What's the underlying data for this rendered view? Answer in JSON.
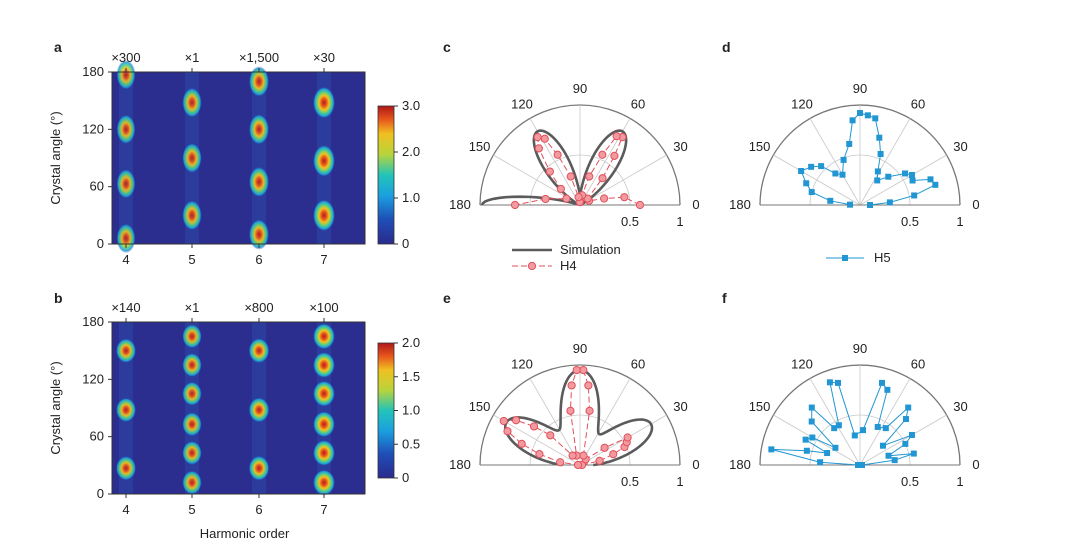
{
  "chart_data": [
    {
      "panel": "a",
      "type": "heatmap",
      "xlabel": "",
      "ylabel": "Crystal angle (°)",
      "x_ticks": [
        "4",
        "5",
        "6",
        "7"
      ],
      "y_ticks": [
        "0",
        "60",
        "120",
        "180"
      ],
      "ylim": [
        0,
        180
      ],
      "top_labels": [
        "×300",
        "×1",
        "×1,500",
        "×30"
      ],
      "colorbar": {
        "ticks": [
          "0",
          "1.0",
          "2.0",
          "3.0"
        ],
        "range": [
          0,
          3
        ]
      },
      "spots": [
        {
          "h": 4,
          "angles": [
            6,
            63,
            120,
            177
          ],
          "level": 0.75
        },
        {
          "h": 5,
          "angles": [
            30,
            90,
            148
          ],
          "level": 0.8
        },
        {
          "h": 6,
          "angles": [
            10,
            65,
            120,
            170
          ],
          "level": 0.85
        },
        {
          "h": 7,
          "angles": [
            30,
            87,
            148
          ],
          "level": 1.0
        }
      ]
    },
    {
      "panel": "b",
      "type": "heatmap",
      "xlabel": "Harmonic order",
      "ylabel": "Crystal angle (°)",
      "x_ticks": [
        "4",
        "5",
        "6",
        "7"
      ],
      "y_ticks": [
        "0",
        "60",
        "120",
        "180"
      ],
      "ylim": [
        0,
        180
      ],
      "top_labels": [
        "×140",
        "×1",
        "×800",
        "×100"
      ],
      "colorbar": {
        "ticks": [
          "0",
          "0.5",
          "1.0",
          "1.5",
          "2.0"
        ],
        "range": [
          0,
          2
        ]
      },
      "spots": [
        {
          "h": 4,
          "angles": [
            27,
            88,
            150
          ],
          "level": 0.85
        },
        {
          "h": 5,
          "angles": [
            12,
            43,
            73,
            105,
            135,
            165
          ],
          "level": 0.8
        },
        {
          "h": 6,
          "angles": [
            27,
            88,
            150
          ],
          "level": 0.9
        },
        {
          "h": 7,
          "angles": [
            12,
            43,
            73,
            105,
            135,
            165
          ],
          "level": 1.0
        }
      ]
    },
    {
      "panel": "c",
      "type": "scatter",
      "polar": true,
      "angle_ticks": [
        "180",
        "150",
        "120",
        "90",
        "60",
        "30",
        "0"
      ],
      "radial_ticks": [
        "0.5",
        "1"
      ],
      "legend": [
        "Simulation",
        "H4"
      ],
      "simulation_lobes": [
        {
          "angle": 60,
          "amp": 0.85,
          "width": 2.2
        },
        {
          "angle": 120,
          "amp": 0.85,
          "width": 2.2
        },
        {
          "angle": 180,
          "amp": 0.98,
          "width": 4
        }
      ],
      "series": [
        {
          "name": "H4",
          "points": [
            [
              0,
              0.6
            ],
            [
              10,
              0.45
            ],
            [
              15,
              0.25
            ],
            [
              25,
              0.1
            ],
            [
              40,
              0.1
            ],
            [
              50,
              0.35
            ],
            [
              55,
              0.6
            ],
            [
              58,
              0.8
            ],
            [
              62,
              0.78
            ],
            [
              66,
              0.55
            ],
            [
              72,
              0.3
            ],
            [
              78,
              0.1
            ],
            [
              85,
              0.03
            ],
            [
              95,
              0.03
            ],
            [
              100,
              0.08
            ],
            [
              108,
              0.3
            ],
            [
              114,
              0.55
            ],
            [
              118,
              0.75
            ],
            [
              122,
              0.8
            ],
            [
              126,
              0.7
            ],
            [
              132,
              0.45
            ],
            [
              140,
              0.25
            ],
            [
              155,
              0.15
            ],
            [
              170,
              0.35
            ],
            [
              180,
              0.65
            ]
          ]
        }
      ]
    },
    {
      "panel": "d",
      "type": "scatter",
      "polar": true,
      "angle_ticks": [
        "180",
        "150",
        "120",
        "90",
        "60",
        "30",
        "0"
      ],
      "radial_ticks": [
        "0.5",
        "1"
      ],
      "legend": [
        "H5"
      ],
      "series": [
        {
          "name": "H5",
          "points": [
            [
              0,
              0.1
            ],
            [
              5,
              0.3
            ],
            [
              10,
              0.55
            ],
            [
              15,
              0.78
            ],
            [
              20,
              0.75
            ],
            [
              25,
              0.58
            ],
            [
              30,
              0.6
            ],
            [
              35,
              0.55
            ],
            [
              45,
              0.4
            ],
            [
              55,
              0.3
            ],
            [
              62,
              0.38
            ],
            [
              68,
              0.55
            ],
            [
              74,
              0.7
            ],
            [
              80,
              0.88
            ],
            [
              85,
              0.9
            ],
            [
              90,
              0.92
            ],
            [
              95,
              0.85
            ],
            [
              100,
              0.62
            ],
            [
              110,
              0.48
            ],
            [
              120,
              0.35
            ],
            [
              128,
              0.4
            ],
            [
              135,
              0.55
            ],
            [
              142,
              0.62
            ],
            [
              150,
              0.68
            ],
            [
              158,
              0.58
            ],
            [
              165,
              0.5
            ],
            [
              172,
              0.3
            ],
            [
              178,
              0.1
            ]
          ]
        }
      ]
    },
    {
      "panel": "e",
      "type": "scatter",
      "polar": true,
      "angle_ticks": [
        "180",
        "150",
        "120",
        "90",
        "60",
        "30",
        "0"
      ],
      "radial_ticks": [
        "0.5",
        "1"
      ],
      "simulation_lobes": [
        {
          "angle": 90,
          "amp": 0.95,
          "width": 1.7
        },
        {
          "angle": 150,
          "amp": 0.85,
          "width": 1.8
        },
        {
          "angle": 30,
          "amp": 0.82,
          "width": 1.9
        }
      ],
      "series": [
        {
          "name": "H4",
          "points": [
            [
              0,
              0.02
            ],
            [
              12,
              0.2
            ],
            [
              18,
              0.35
            ],
            [
              22,
              0.48
            ],
            [
              26,
              0.52
            ],
            [
              30,
              0.55
            ],
            [
              35,
              0.3
            ],
            [
              45,
              0.08
            ],
            [
              70,
              0.1
            ],
            [
              80,
              0.55
            ],
            [
              84,
              0.8
            ],
            [
              88,
              0.95
            ],
            [
              92,
              0.95
            ],
            [
              96,
              0.8
            ],
            [
              100,
              0.55
            ],
            [
              110,
              0.1
            ],
            [
              128,
              0.12
            ],
            [
              135,
              0.42
            ],
            [
              140,
              0.6
            ],
            [
              145,
              0.78
            ],
            [
              150,
              0.88
            ],
            [
              155,
              0.8
            ],
            [
              160,
              0.62
            ],
            [
              165,
              0.42
            ],
            [
              172,
              0.2
            ],
            [
              178,
              0.02
            ]
          ]
        }
      ]
    },
    {
      "panel": "f",
      "type": "scatter",
      "polar": true,
      "angle_ticks": [
        "180",
        "150",
        "120",
        "90",
        "60",
        "30",
        "0"
      ],
      "radial_ticks": [
        "0.5",
        "1"
      ],
      "series": [
        {
          "name": "H5",
          "points": [
            [
              0,
              0.02
            ],
            [
              8,
              0.35
            ],
            [
              12,
              0.55
            ],
            [
              18,
              0.3
            ],
            [
              25,
              0.5
            ],
            [
              30,
              0.6
            ],
            [
              40,
              0.3
            ],
            [
              45,
              0.65
            ],
            [
              50,
              0.75
            ],
            [
              55,
              0.45
            ],
            [
              65,
              0.42
            ],
            [
              70,
              0.8
            ],
            [
              75,
              0.85
            ],
            [
              85,
              0.35
            ],
            [
              100,
              0.3
            ],
            [
              105,
              0.85
            ],
            [
              110,
              0.88
            ],
            [
              118,
              0.45
            ],
            [
              125,
              0.45
            ],
            [
              130,
              0.75
            ],
            [
              138,
              0.65
            ],
            [
              145,
              0.3
            ],
            [
              150,
              0.55
            ],
            [
              155,
              0.6
            ],
            [
              160,
              0.35
            ],
            [
              165,
              0.55
            ],
            [
              170,
              0.9
            ],
            [
              176,
              0.4
            ],
            [
              180,
              0.02
            ]
          ]
        }
      ]
    }
  ]
}
